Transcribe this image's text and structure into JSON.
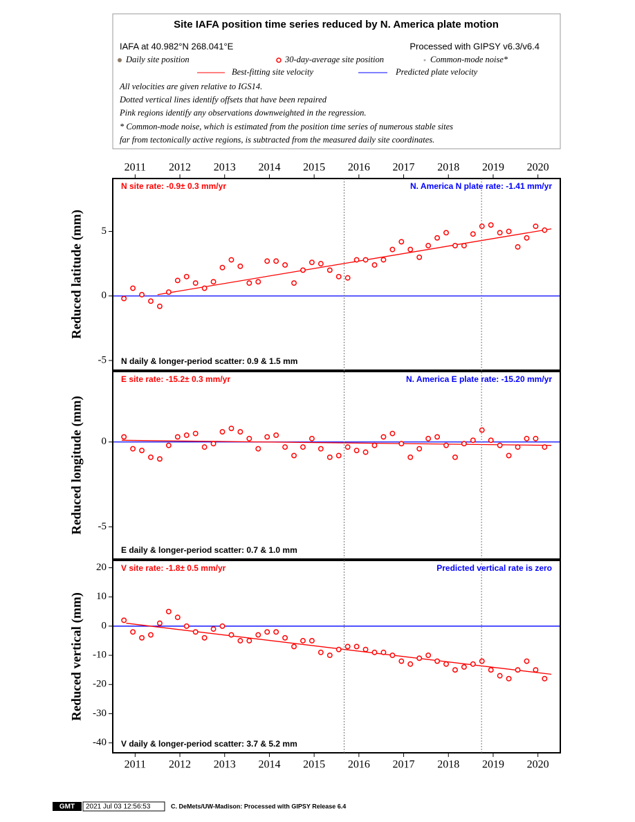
{
  "header": {
    "title": "Site IAFA position time series reduced by N. America plate motion",
    "site": "IAFA at 40.982°N 268.041°E",
    "processing": "Processed with GIPSY v6.3/v6.4",
    "legend": {
      "daily": "Daily site position",
      "average": "30-day-average site position",
      "common_mode": "Common-mode noise*",
      "fit": "Best-fitting site velocity",
      "plate": "Predicted plate velocity"
    },
    "notes": [
      "All velocities are given relative to IGS14.",
      "Dotted vertical lines identify offsets that have been repaired",
      "Pink regions identify any observations downweighted in the regression.",
      "* Common-mode noise, which is estimated from the position time series of numerous stable sites",
      "far from tectonically active regions, is subtracted from the measured daily site coordinates."
    ]
  },
  "time_axis": {
    "xlim": [
      2010.5,
      2020.5
    ],
    "xticks": [
      2011,
      2012,
      2013,
      2014,
      2015,
      2016,
      2017,
      2018,
      2019,
      2020
    ],
    "offsets": [
      2015.67,
      2018.74
    ]
  },
  "chart_data": [
    {
      "type": "scatter",
      "ylabel": "Reduced latitude (mm)",
      "rate": "N site rate:  -0.9± 0.3 mm/yr",
      "plate_rate": "N. America N plate rate: -1.41 mm/yr",
      "scatter": "N daily & longer-period scatter:   0.9 &   1.5 mm",
      "ylim": [
        -5.75,
        9.1
      ],
      "yticks": [
        -5,
        0,
        5
      ],
      "average": {
        "color": "#ff0000",
        "x": [
          2010.75,
          2010.95,
          2011.15,
          2011.35,
          2011.55,
          2011.75,
          2011.95,
          2012.15,
          2012.35,
          2012.55,
          2012.75,
          2012.95,
          2013.15,
          2013.35,
          2013.55,
          2013.75,
          2013.95,
          2014.15,
          2014.35,
          2014.55,
          2014.75,
          2014.95,
          2015.15,
          2015.35,
          2015.55,
          2015.75,
          2015.95,
          2016.15,
          2016.35,
          2016.55,
          2016.75,
          2016.95,
          2017.15,
          2017.35,
          2017.55,
          2017.75,
          2017.95,
          2018.15,
          2018.35,
          2018.55,
          2018.75,
          2018.95,
          2019.15,
          2019.35,
          2019.55,
          2019.75,
          2019.95,
          2020.15
        ],
        "values": [
          -0.2,
          0.6,
          0.1,
          -0.4,
          -0.8,
          0.3,
          1.2,
          1.5,
          1.0,
          0.6,
          1.1,
          2.2,
          2.8,
          2.3,
          1.0,
          1.1,
          2.7,
          2.7,
          2.4,
          1.0,
          2.0,
          2.6,
          2.5,
          2.0,
          1.5,
          1.4,
          2.8,
          2.8,
          2.4,
          2.8,
          3.6,
          4.2,
          3.6,
          3.0,
          3.9,
          4.5,
          4.9,
          3.9,
          3.9,
          4.8,
          5.4,
          5.5,
          4.9,
          5.0,
          3.8,
          4.5,
          5.4,
          5.1
        ]
      },
      "fit": {
        "color": "#ff0000",
        "x": [
          2011.5,
          2020.3
        ],
        "values": [
          0.1,
          5.2
        ]
      },
      "plate": {
        "color": "#0000ff",
        "x": [
          2010.5,
          2020.5
        ],
        "values": [
          0,
          0
        ]
      }
    },
    {
      "type": "scatter",
      "ylabel": "Reduced longitude (mm)",
      "rate": "E site rate:  -15.2± 0.3 mm/yr",
      "plate_rate": "N. America E plate rate: -15.20 mm/yr",
      "scatter": "E daily & longer-period scatter:   0.7 &   1.0 mm",
      "ylim": [
        -6.9,
        4.15
      ],
      "yticks": [
        -5,
        0
      ],
      "average": {
        "color": "#ff0000",
        "x": [
          2010.75,
          2010.95,
          2011.15,
          2011.35,
          2011.55,
          2011.75,
          2011.95,
          2012.15,
          2012.35,
          2012.55,
          2012.75,
          2012.95,
          2013.15,
          2013.35,
          2013.55,
          2013.75,
          2013.95,
          2014.15,
          2014.35,
          2014.55,
          2014.75,
          2014.95,
          2015.15,
          2015.35,
          2015.55,
          2015.75,
          2015.95,
          2016.15,
          2016.35,
          2016.55,
          2016.75,
          2016.95,
          2017.15,
          2017.35,
          2017.55,
          2017.75,
          2017.95,
          2018.15,
          2018.35,
          2018.55,
          2018.75,
          2018.95,
          2019.15,
          2019.35,
          2019.55,
          2019.75,
          2019.95,
          2020.15
        ],
        "values": [
          0.3,
          -0.4,
          -0.5,
          -0.9,
          -1.0,
          -0.2,
          0.3,
          0.4,
          0.5,
          -0.3,
          -0.1,
          0.6,
          0.8,
          0.6,
          0.2,
          -0.4,
          0.3,
          0.4,
          -0.3,
          -0.8,
          -0.3,
          0.2,
          -0.4,
          -0.9,
          -0.8,
          -0.3,
          -0.5,
          -0.6,
          -0.2,
          0.3,
          0.5,
          -0.1,
          -0.9,
          -0.4,
          0.2,
          0.3,
          -0.2,
          -0.9,
          -0.1,
          0.1,
          0.7,
          0.1,
          -0.2,
          -0.8,
          -0.3,
          0.2,
          0.2,
          -0.3
        ]
      },
      "fit": {
        "color": "#ff0000",
        "x": [
          2010.7,
          2020.3
        ],
        "values": [
          0.1,
          -0.2
        ]
      },
      "plate": {
        "color": "#0000ff",
        "x": [
          2010.5,
          2020.5
        ],
        "values": [
          0,
          0
        ]
      }
    },
    {
      "type": "scatter",
      "ylabel": "Reduced vertical (mm)",
      "rate": "V site rate:  -1.8± 0.5 mm/yr",
      "plate_rate": "Predicted vertical rate is zero",
      "scatter": "V daily & longer-period scatter:   3.7 &   5.2 mm",
      "ylim": [
        -43.4,
        22.5
      ],
      "yticks": [
        20,
        10,
        0,
        -10,
        -20,
        -30,
        -40
      ],
      "average": {
        "color": "#ff0000",
        "x": [
          2010.75,
          2010.95,
          2011.15,
          2011.35,
          2011.55,
          2011.75,
          2011.95,
          2012.15,
          2012.35,
          2012.55,
          2012.75,
          2012.95,
          2013.15,
          2013.35,
          2013.55,
          2013.75,
          2013.95,
          2014.15,
          2014.35,
          2014.55,
          2014.75,
          2014.95,
          2015.15,
          2015.35,
          2015.55,
          2015.75,
          2015.95,
          2016.15,
          2016.35,
          2016.55,
          2016.75,
          2016.95,
          2017.15,
          2017.35,
          2017.55,
          2017.75,
          2017.95,
          2018.15,
          2018.35,
          2018.55,
          2018.75,
          2018.95,
          2019.15,
          2019.35,
          2019.55,
          2019.75,
          2019.95,
          2020.15
        ],
        "values": [
          2,
          -2,
          -4,
          -3,
          1,
          5,
          3,
          0,
          -2,
          -4,
          -1,
          0,
          -3,
          -5,
          -5,
          -3,
          -2,
          -2,
          -4,
          -7,
          -5,
          -5,
          -9,
          -10,
          -8,
          -7,
          -7,
          -8,
          -9,
          -9,
          -10,
          -12,
          -13,
          -11,
          -10,
          -12,
          -13,
          -15,
          -14,
          -13,
          -12,
          -15,
          -17,
          -18,
          -15,
          -12,
          -15,
          -18
        ]
      },
      "fit": {
        "color": "#ff0000",
        "x": [
          2010.8,
          2020.3
        ],
        "values": [
          1,
          -16.5
        ]
      },
      "plate": {
        "color": "#0000ff",
        "x": [
          2010.5,
          2020.5
        ],
        "values": [
          0,
          0
        ]
      }
    }
  ],
  "footer": {
    "logo": "GMT",
    "timestamp": "2021 Jul 03 12:56:53",
    "credit": "C. DeMets/UW-Madison: Processed with GIPSY Release 6.4"
  }
}
